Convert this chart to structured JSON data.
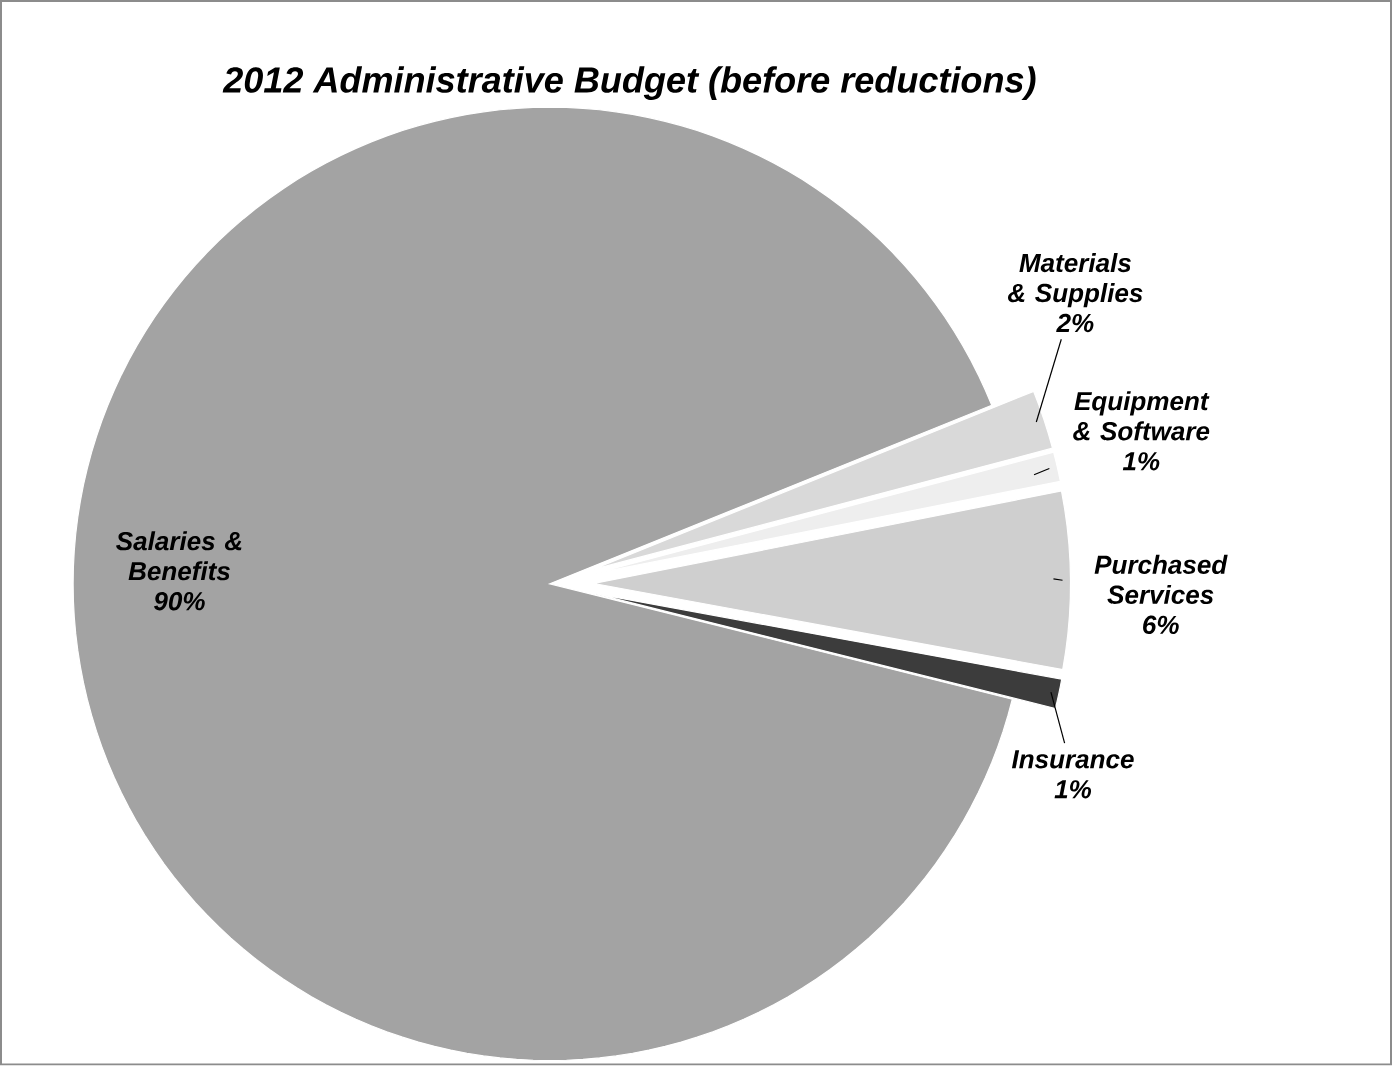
{
  "chart_data": {
    "type": "pie",
    "title": "2012 Administrative Budget (before reductions)",
    "categories": [
      "Salaries & Benefits",
      "Materials & Supplies",
      "Equipment & Software",
      "Purchased Services",
      "Insurance"
    ],
    "values": [
      90,
      2,
      1,
      6,
      1
    ],
    "value_labels": [
      "90%",
      "2%",
      "1%",
      "6%",
      "1%"
    ],
    "colors": [
      "#a3a3a3",
      "#d9d9d9",
      "#eeeeee",
      "#cfcfcf",
      "#3c3c3c"
    ]
  }
}
